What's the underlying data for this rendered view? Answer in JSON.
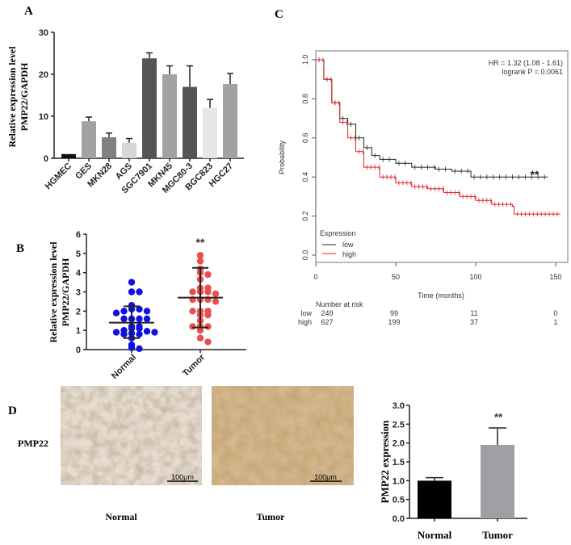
{
  "panels": {
    "a": "A",
    "b": "B",
    "c": "C",
    "d": "D"
  },
  "chart_data": [
    {
      "panel": "A",
      "type": "bar",
      "ylabel_lines": [
        "Relative expression level",
        "PMP22/GAPDH"
      ],
      "categories": [
        "HGMEC",
        "GES",
        "MKN28",
        "AGS",
        "SGC7901",
        "MKN45",
        "MGC80-3",
        "BGC823",
        "HGC27"
      ],
      "values": [
        1.0,
        8.8,
        5.0,
        3.7,
        23.8,
        20.0,
        17.0,
        12.0,
        17.7
      ],
      "error_upper": [
        0,
        1.0,
        1.0,
        1.0,
        1.3,
        2.0,
        5.0,
        2.0,
        2.5
      ],
      "colors": [
        "#111111",
        "#a2a2a2",
        "#808080",
        "#d6d6d6",
        "#555555",
        "#a2a2a2",
        "#555555",
        "#e6e6e6",
        "#a2a2a2"
      ],
      "ylim": [
        0,
        30
      ],
      "yticks": [
        "0",
        "10",
        "20",
        "30"
      ]
    },
    {
      "panel": "B",
      "type": "scatter",
      "ylabel_lines": [
        "Relative expression level",
        "PMP22/GAPDH"
      ],
      "categories": [
        "Normal",
        "Tumor"
      ],
      "series": [
        {
          "category": "Normal",
          "color": "#1010e0",
          "mean": 1.4,
          "sd_low": 0.6,
          "sd_high": 2.25,
          "values": [
            3.5,
            3.0,
            3.0,
            2.3,
            2.1,
            2.1,
            2.0,
            2.0,
            1.9,
            1.6,
            1.6,
            1.6,
            1.6,
            1.2,
            1.2,
            1.1,
            1.1,
            1.0,
            0.95,
            0.9,
            0.9,
            0.85,
            0.8,
            0.8,
            0.6,
            0.25,
            0.1,
            0.05
          ]
        },
        {
          "category": "Tumor",
          "color": "#e85050",
          "mean": 2.7,
          "sd_low": 1.15,
          "sd_high": 4.25,
          "values": [
            4.9,
            4.6,
            4.2,
            4.0,
            3.9,
            3.65,
            3.2,
            3.2,
            3.0,
            3.0,
            3.0,
            2.9,
            2.6,
            2.6,
            2.6,
            2.5,
            2.0,
            2.0,
            2.0,
            1.8,
            1.8,
            1.5,
            1.2,
            1.2,
            1.2,
            1.0,
            0.6,
            0.4
          ]
        }
      ],
      "significance": "**",
      "ylim": [
        0,
        6
      ],
      "yticks": [
        "0",
        "1",
        "2",
        "3",
        "4",
        "5",
        "6"
      ]
    },
    {
      "panel": "C",
      "type": "line",
      "xlabel": "Time (months)",
      "ylabel": "Probability",
      "xlim": [
        0,
        155
      ],
      "ylim": [
        0,
        1.0
      ],
      "xticks": [
        "0",
        "50",
        "100",
        "150"
      ],
      "yticks": [
        "0.0",
        "0.2",
        "0.4",
        "0.6",
        "0.8",
        "1.0"
      ],
      "annotation_hr": "HR = 1.32 (1.08 - 1.61)",
      "annotation_p": "logrank P = 0.0061",
      "significance": "**",
      "legend_title": "Expression",
      "legend_placement": "bottom-left",
      "series": [
        {
          "name": "low",
          "color": "#222222",
          "x": [
            0,
            5,
            10,
            15,
            20,
            25,
            30,
            35,
            40,
            50,
            60,
            75,
            85,
            97,
            145
          ],
          "y": [
            1.0,
            0.9,
            0.78,
            0.7,
            0.67,
            0.6,
            0.55,
            0.51,
            0.49,
            0.47,
            0.45,
            0.44,
            0.43,
            0.4,
            0.4
          ]
        },
        {
          "name": "high",
          "color": "#e02020",
          "x": [
            0,
            5,
            10,
            15,
            20,
            25,
            30,
            40,
            50,
            60,
            70,
            80,
            90,
            100,
            110,
            123,
            124,
            153
          ],
          "y": [
            1.0,
            0.9,
            0.78,
            0.68,
            0.6,
            0.53,
            0.45,
            0.4,
            0.37,
            0.35,
            0.34,
            0.32,
            0.3,
            0.28,
            0.26,
            0.25,
            0.21,
            0.21
          ]
        }
      ],
      "risk_table": {
        "title": "Number at risk",
        "rows": [
          {
            "label": "low",
            "color": "#222222",
            "values": [
              "249",
              "99",
              "11",
              "0"
            ]
          },
          {
            "label": "high",
            "color": "#e02020",
            "values": [
              "627",
              "199",
              "37",
              "1"
            ]
          }
        ]
      }
    },
    {
      "panel": "D",
      "type": "bar",
      "ylabel": "PMP22 expression",
      "categories": [
        "Normal",
        "Tumor"
      ],
      "values": [
        1.0,
        1.95
      ],
      "error_upper": [
        0.08,
        0.45
      ],
      "colors": [
        "#000000",
        "#a0a0a4"
      ],
      "significance": "**",
      "ylim": [
        0,
        3.0
      ],
      "yticks": [
        "0.0",
        "0.5",
        "1.0",
        "1.5",
        "2.0",
        "2.5",
        "3.0"
      ]
    }
  ],
  "histology": {
    "row_label": "PMP22",
    "images": [
      {
        "label": "Normal",
        "scale_bar": "100μm"
      },
      {
        "label": "Tumor",
        "scale_bar": "100μm"
      }
    ]
  }
}
